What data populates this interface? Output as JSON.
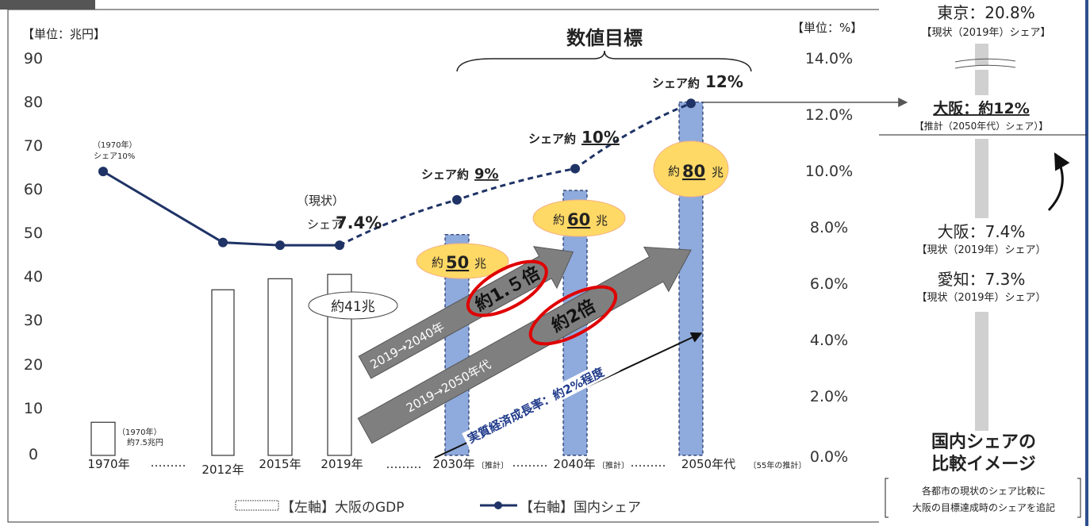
{
  "left_axis_unit": "【単位：兆円】",
  "right_axis_unit": "【単位：%】",
  "target_heading": "数値目標",
  "left_ticks": [
    "90",
    "80",
    "70",
    "60",
    "50",
    "40",
    "30",
    "20",
    "10",
    "0"
  ],
  "right_ticks": [
    "14.0%",
    "12.0%",
    "10.0%",
    "8.0%",
    "6.0%",
    "4.0%",
    "2.0%",
    "0.0%"
  ],
  "x_labels": {
    "y1970": "1970年",
    "y2012": "2012年",
    "y2015": "2015年",
    "y2019": "2019年",
    "y2030": "2030年",
    "y2040": "2040年",
    "y2050": "2050年代",
    "est": "〔推計〕",
    "est55": "〔55年の推計〕",
    "dots": "………"
  },
  "legend": {
    "gdp": "【左軸】大阪のGDP",
    "share": "【右軸】国内シェア"
  },
  "annotations": {
    "gdp1970_year": "（1970年）",
    "gdp1970_value": "約7.5兆円",
    "share1970_year": "（1970年）",
    "share1970_value": "シェア10%",
    "current_label": "（現状）",
    "share2019_prefix": "シェア",
    "share2019_value": "7.4%",
    "gdp2019_bubble": "約41兆",
    "gdp2030_prefix": "約",
    "gdp2030_value": "50",
    "gdp2040_prefix": "約",
    "gdp2040_value": "60",
    "gdp2050_prefix": "約",
    "gdp2050_value": "80",
    "oku_suffix": "兆",
    "share2030_prefix": "シェア約",
    "share2030_value": "9%",
    "share2040_prefix": "シェア約",
    "share2040_value": "10%",
    "share2050_prefix": "シェア約",
    "share2050_value": "12%",
    "arrow1_text": "2019→2040年",
    "arrow1_multiplier": "約1.５倍",
    "arrow2_text": "2019→2050年代",
    "arrow2_multiplier": "約2倍",
    "growth_rate": "実質経済成長率：約2%程度"
  },
  "side_panel": {
    "tokyo_label": "東京：20.8%",
    "tokyo_note": "【現状（2019年）シェア】",
    "osaka_target": "大阪：約12%",
    "osaka_target_note": "【推計（2050年代）シェア）】",
    "osaka_current": "大阪：7.4%",
    "osaka_current_note": "【現状（2019年）シェア）",
    "aichi_current": "愛知：7.3%",
    "aichi_note": "【現状（2019年）シェア）",
    "title_line1": "国内シェアの",
    "title_line2": "比較イメージ",
    "footnote_line1": "各都市の現状のシェア比較に",
    "footnote_line2": "大阪の目標達成時のシェアを追記"
  },
  "colors": {
    "line": "#1f3366",
    "projected_bar": "#8faadc",
    "bubble": "#ffd966",
    "bubble_border": "#f4b183",
    "arrow": "#7f7f7f",
    "oval": "#e00000",
    "panel_bar": "#d0d0d0"
  },
  "chart_data": {
    "type": "bar",
    "categories": [
      "1970年",
      "2012年",
      "2015年",
      "2019年",
      "2030年",
      "2040年",
      "2050年代"
    ],
    "series": [
      {
        "name": "【左軸】大阪のGDP",
        "axis": "left",
        "unit": "兆円",
        "values": [
          7.5,
          37.5,
          40,
          41,
          50,
          60,
          80
        ],
        "projected": [
          false,
          false,
          false,
          false,
          true,
          true,
          true
        ]
      },
      {
        "name": "【右軸】国内シェア",
        "axis": "right",
        "type": "line",
        "unit": "%",
        "values": [
          10,
          7.5,
          7.4,
          7.4,
          9,
          10.1,
          12.4
        ],
        "projected_from_index": 3
      }
    ],
    "ylim_left": [
      0,
      90
    ],
    "ylim_right": [
      0,
      14
    ],
    "title": "数値目標",
    "ylabel_left": "【単位：兆円】",
    "ylabel_right": "【単位：%】",
    "legend_position": "bottom"
  }
}
